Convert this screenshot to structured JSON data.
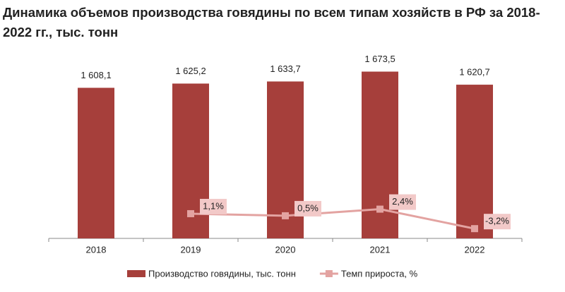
{
  "chart_data": {
    "type": "bar-line",
    "title": "Динамика объемов производства говядины по всем типам хозяйств в РФ за 2018-2022 гг., тыс. тонн",
    "categories": [
      "2018",
      "2019",
      "2020",
      "2021",
      "2022"
    ],
    "ylim": [
      1000,
      1900
    ],
    "y2lim": [
      -6,
      58
    ],
    "series": [
      {
        "name": "Производство говядины, тыс. тонн",
        "type": "bar",
        "color": "#a63f3b",
        "values": [
          1608.1,
          1625.2,
          1633.7,
          1673.5,
          1620.7
        ],
        "value_labels": [
          "1 608,1",
          "1 625,2",
          "1 633,7",
          "1 673,5",
          "1 620,7"
        ]
      },
      {
        "name": "Темп прироста, %",
        "type": "line",
        "axis": "y2",
        "color": "#e3a3a1",
        "label_fill": "#f2c9c8",
        "values": [
          null,
          1.1,
          0.5,
          2.4,
          -3.2
        ],
        "value_labels": [
          null,
          "1,1%",
          "0,5%",
          "2,4%",
          "-3,2%"
        ]
      }
    ]
  }
}
